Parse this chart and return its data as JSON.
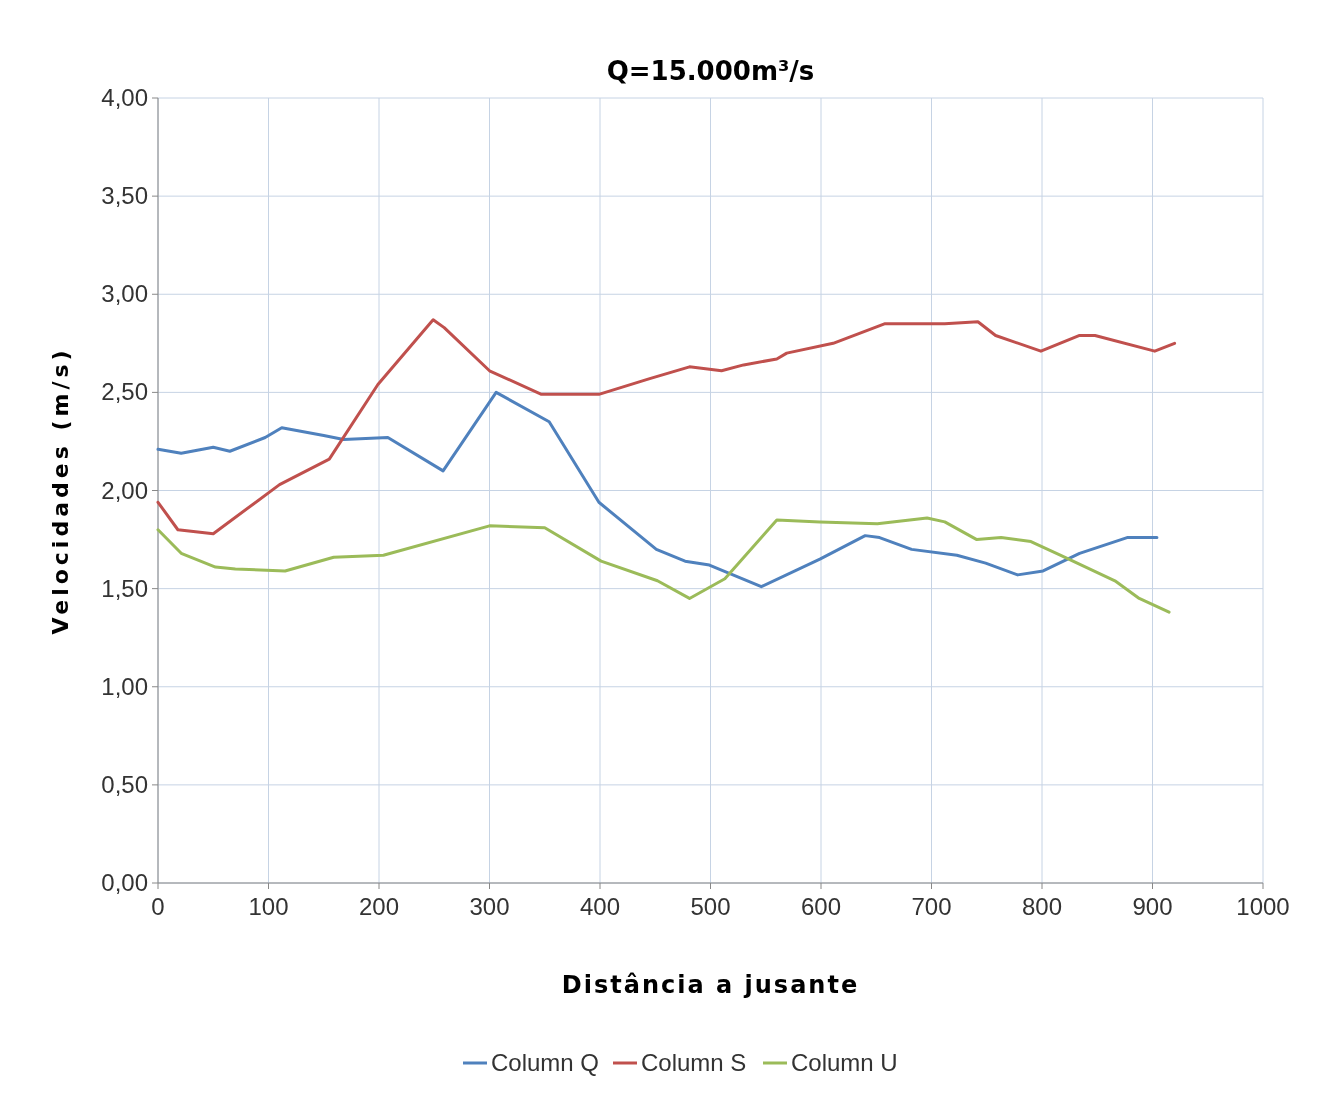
{
  "chart_data": {
    "type": "line",
    "title": "Q=15.000m³/s",
    "xlabel": "Distância a jusante",
    "ylabel": "Velocidades (m/s)",
    "xlim": [
      0,
      1000
    ],
    "xticks": [
      0,
      100,
      200,
      300,
      400,
      500,
      600,
      700,
      800,
      900,
      1000
    ],
    "ylim": [
      0,
      4
    ],
    "yticks": [
      {
        "value": 0,
        "label": "0,00"
      },
      {
        "value": 0.5,
        "label": "0,50"
      },
      {
        "value": 1,
        "label": "1,00"
      },
      {
        "value": 1.5,
        "label": "1,50"
      },
      {
        "value": 2,
        "label": "2,00"
      },
      {
        "value": 2.5,
        "label": "2,50"
      },
      {
        "value": 3,
        "label": "3,00"
      },
      {
        "value": 3.5,
        "label": "3,50"
      },
      {
        "value": 4,
        "label": "4,00"
      }
    ],
    "grid": true,
    "legend": "bottom",
    "marker": "none",
    "line_style": "solid",
    "series": [
      {
        "name": "Column Q",
        "color": "#4f81bd",
        "x": [
          0,
          21,
          50,
          65,
          97,
          112,
          150,
          168,
          208,
          258,
          306,
          354,
          399,
          451,
          477,
          499,
          546,
          599,
          640,
          653,
          682,
          723,
          749,
          778,
          801,
          834,
          877,
          904
        ],
        "values": [
          2.21,
          2.19,
          2.22,
          2.2,
          2.27,
          2.32,
          2.28,
          2.26,
          2.27,
          2.1,
          2.5,
          2.35,
          1.94,
          1.7,
          1.64,
          1.62,
          1.51,
          1.65,
          1.77,
          1.76,
          1.7,
          1.67,
          1.63,
          1.57,
          1.59,
          1.68,
          1.76,
          1.76
        ]
      },
      {
        "name": "Column S",
        "color": "#c0504d",
        "x": [
          0,
          18,
          50,
          110,
          155,
          199,
          249,
          259,
          300,
          347,
          399,
          445,
          481,
          510,
          530,
          560,
          569,
          611,
          658,
          712,
          742,
          758,
          799,
          834,
          848,
          902,
          920
        ],
        "values": [
          1.94,
          1.8,
          1.78,
          2.03,
          2.16,
          2.54,
          2.87,
          2.83,
          2.61,
          2.49,
          2.49,
          2.57,
          2.63,
          2.61,
          2.64,
          2.67,
          2.7,
          2.75,
          2.85,
          2.85,
          2.86,
          2.79,
          2.71,
          2.79,
          2.79,
          2.71,
          2.75
        ]
      },
      {
        "name": "Column U",
        "color": "#9bbb59",
        "x": [
          0,
          21,
          52,
          70,
          115,
          159,
          204,
          300,
          350,
          401,
          452,
          481,
          513,
          560,
          599,
          651,
          696,
          712,
          741,
          763,
          790,
          817,
          866,
          888,
          915
        ],
        "values": [
          1.8,
          1.68,
          1.61,
          1.6,
          1.59,
          1.66,
          1.67,
          1.82,
          1.81,
          1.64,
          1.54,
          1.45,
          1.55,
          1.85,
          1.84,
          1.83,
          1.86,
          1.84,
          1.75,
          1.76,
          1.74,
          1.67,
          1.54,
          1.45,
          1.38
        ]
      }
    ]
  }
}
